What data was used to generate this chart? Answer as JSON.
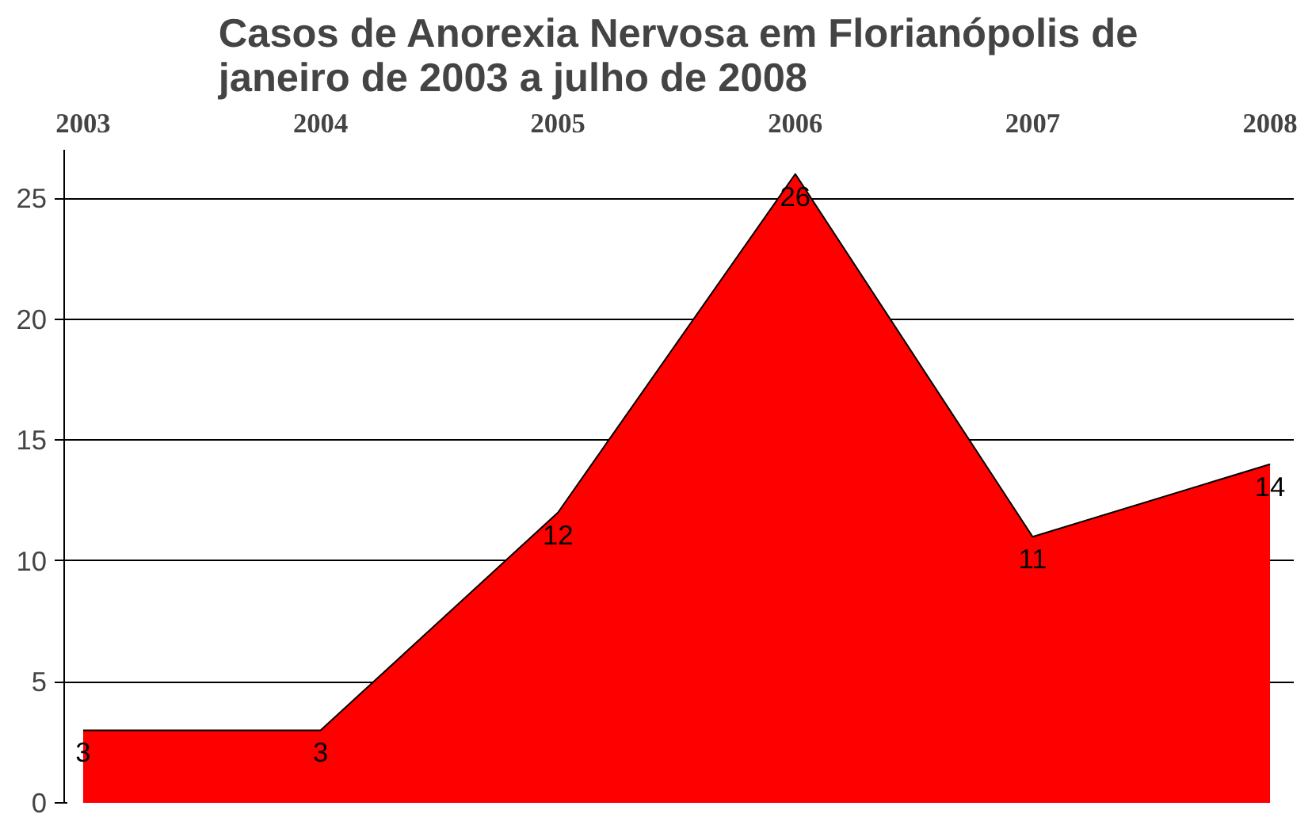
{
  "chart_data": {
    "type": "area",
    "title": "Casos de Anorexia Nervosa em Florianópolis de\njaneiro de 2003 a julho de 2008",
    "categories": [
      "2003",
      "2004",
      "2005",
      "2006",
      "2007",
      "2008"
    ],
    "series": [
      {
        "color": "#ff0000",
        "values": [
          3,
          3,
          12,
          26,
          11,
          14
        ]
      }
    ],
    "ylim": [
      0,
      27
    ],
    "yticks": [
      0,
      5,
      10,
      15,
      20,
      25
    ],
    "grid": "y",
    "data_labels": true
  }
}
